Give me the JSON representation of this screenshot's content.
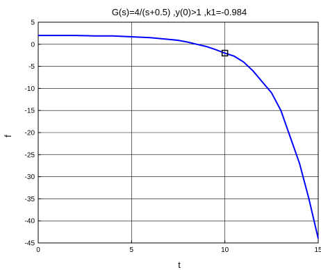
{
  "chart_data": {
    "type": "line",
    "title": "G(s)=4/(s+0.5) ,y(0)>1 ,k1=-0.984",
    "xlabel": "t",
    "ylabel": "f",
    "xlim": [
      0,
      15
    ],
    "ylim": [
      -45,
      5
    ],
    "xticks": [
      "0",
      "5",
      "10",
      "15"
    ],
    "yticks": [
      "5",
      "0",
      "-5",
      "-10",
      "-15",
      "-20",
      "-25",
      "-30",
      "-35",
      "-40",
      "-45"
    ],
    "grid": true,
    "line_color": "#0000ff",
    "series": [
      {
        "x": [
          0,
          1,
          2,
          3,
          4,
          5,
          6,
          6.5,
          7,
          7.5,
          8,
          8.5,
          9,
          9.5,
          10,
          10.5,
          11,
          11.5,
          12,
          12.5,
          13,
          13.5,
          14,
          14.5,
          15
        ],
        "y": [
          2,
          2,
          2,
          1.9,
          1.9,
          1.7,
          1.5,
          1.3,
          1.1,
          0.9,
          0.5,
          0,
          -0.5,
          -1.2,
          -2,
          -2.7,
          -4,
          -6,
          -8.5,
          -11,
          -15,
          -21,
          -27,
          -35,
          -44
        ]
      }
    ],
    "marker_point": {
      "x": 10,
      "y": -2,
      "shape": "square"
    }
  }
}
